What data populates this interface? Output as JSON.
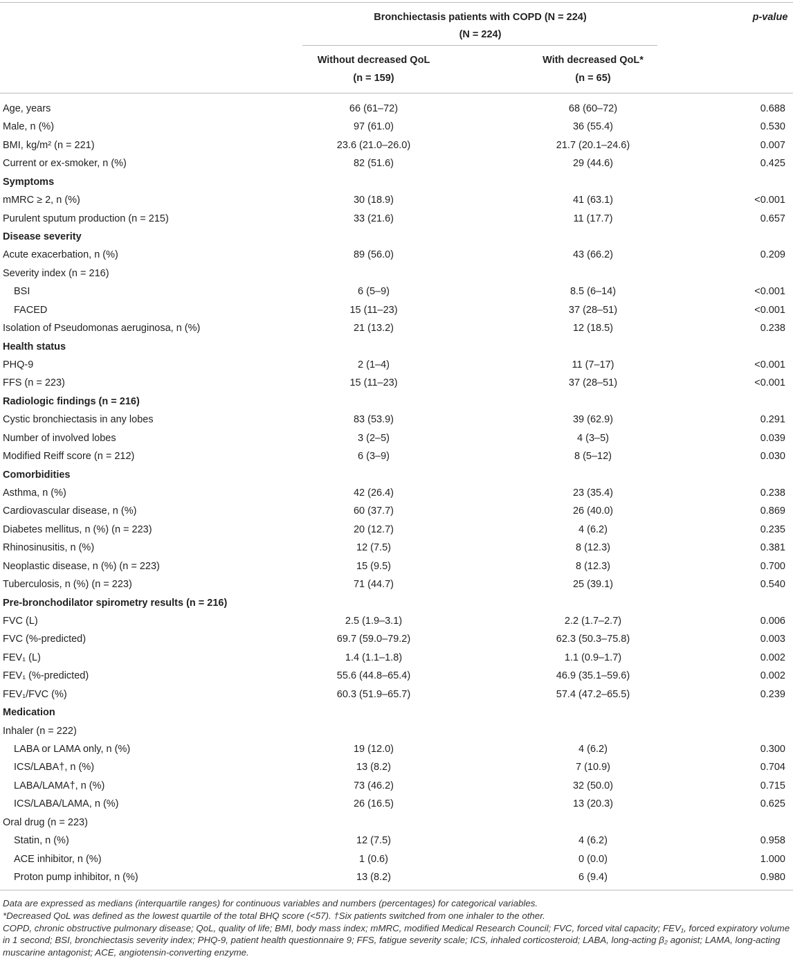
{
  "table": {
    "header": {
      "group": "Bronchiectasis patients with COPD (N = 224)",
      "group_sub": "(N = 224)",
      "pvalue": "p-value",
      "columns": [
        {
          "name": "Without decreased QoL",
          "n": "(n = 159)"
        },
        {
          "name": "With decreased QoL*",
          "n": "(n = 65)"
        }
      ]
    },
    "rows": [
      {
        "label": "Age, years",
        "values": [
          "66 (61–72)",
          "68 (60–72)",
          "0.688"
        ]
      },
      {
        "label": "Male, n (%)",
        "values": [
          "97 (61.0)",
          "36 (55.4)",
          "0.530"
        ]
      },
      {
        "label": "BMI, kg/m² (n = 221)",
        "values": [
          "23.6 (21.0–26.0)",
          "21.7 (20.1–24.6)",
          "0.007"
        ]
      },
      {
        "label": "Current or ex-smoker, n (%)",
        "values": [
          "82 (51.6)",
          "29 (44.6)",
          "0.425"
        ]
      },
      {
        "label": "Symptoms",
        "bold": true
      },
      {
        "label": "mMRC ≥ 2, n (%)",
        "values": [
          "30 (18.9)",
          "41 (63.1)",
          "<0.001"
        ]
      },
      {
        "label": "Purulent sputum production (n = 215)",
        "values": [
          "33 (21.6)",
          "11 (17.7)",
          "0.657"
        ]
      },
      {
        "label": "Disease severity",
        "bold": true
      },
      {
        "label": "Acute exacerbation, n (%)",
        "values": [
          "89 (56.0)",
          "43 (66.2)",
          "0.209"
        ]
      },
      {
        "label": "Severity index (n = 216)"
      },
      {
        "label": "BSI",
        "indent": true,
        "values": [
          "6 (5–9)",
          "8.5 (6–14)",
          "<0.001"
        ]
      },
      {
        "label": "FACED",
        "indent": true,
        "values": [
          "15 (11–23)",
          "37 (28–51)",
          "<0.001"
        ]
      },
      {
        "label": "Isolation of Pseudomonas aeruginosa, n (%)",
        "values": [
          "21 (13.2)",
          "12 (18.5)",
          "0.238"
        ]
      },
      {
        "label": "Health status",
        "bold": true
      },
      {
        "label": "PHQ-9",
        "values": [
          "2 (1–4)",
          "11 (7–17)",
          "<0.001"
        ]
      },
      {
        "label": "FFS (n = 223)",
        "values": [
          "15 (11–23)",
          "37 (28–51)",
          "<0.001"
        ]
      },
      {
        "label": "Radiologic findings (n = 216)",
        "bold": true
      },
      {
        "label": "Cystic bronchiectasis in any lobes",
        "values": [
          "83 (53.9)",
          "39 (62.9)",
          "0.291"
        ]
      },
      {
        "label": "Number of involved lobes",
        "values": [
          "3 (2–5)",
          "4 (3–5)",
          "0.039"
        ]
      },
      {
        "label": "Modified Reiff score (n = 212)",
        "values": [
          "6 (3–9)",
          "8 (5–12)",
          "0.030"
        ]
      },
      {
        "label": "Comorbidities",
        "bold": true
      },
      {
        "label": "Asthma, n (%)",
        "values": [
          "42 (26.4)",
          "23 (35.4)",
          "0.238"
        ]
      },
      {
        "label": "Cardiovascular disease, n (%)",
        "values": [
          "60 (37.7)",
          "26 (40.0)",
          "0.869"
        ]
      },
      {
        "label": "Diabetes mellitus, n (%) (n = 223)",
        "values": [
          "20 (12.7)",
          "4 (6.2)",
          "0.235"
        ]
      },
      {
        "label": "Rhinosinusitis, n (%)",
        "values": [
          "12 (7.5)",
          "8 (12.3)",
          "0.381"
        ]
      },
      {
        "label": "Neoplastic disease, n (%) (n = 223)",
        "values": [
          "15 (9.5)",
          "8 (12.3)",
          "0.700"
        ]
      },
      {
        "label": "Tuberculosis, n (%) (n = 223)",
        "values": [
          "71 (44.7)",
          "25 (39.1)",
          "0.540"
        ]
      },
      {
        "label": "Pre-bronchodilator spirometry results (n = 216)",
        "bold": true
      },
      {
        "label": "FVC (L)",
        "values": [
          "2.5 (1.9–3.1)",
          "2.2 (1.7–2.7)",
          "0.006"
        ]
      },
      {
        "label": "FVC (%-predicted)",
        "values": [
          "69.7 (59.0–79.2)",
          "62.3 (50.3–75.8)",
          "0.003"
        ]
      },
      {
        "label": "FEV₁ (L)",
        "values": [
          "1.4 (1.1–1.8)",
          "1.1 (0.9–1.7)",
          "0.002"
        ]
      },
      {
        "label": "FEV₁ (%-predicted)",
        "values": [
          "55.6 (44.8–65.4)",
          "46.9 (35.1–59.6)",
          "0.002"
        ]
      },
      {
        "label": "FEV₁/FVC (%)",
        "values": [
          "60.3 (51.9–65.7)",
          "57.4 (47.2–65.5)",
          "0.239"
        ]
      },
      {
        "label": "Medication",
        "bold": true
      },
      {
        "label": "Inhaler (n = 222)"
      },
      {
        "label": "LABA or LAMA only, n (%)",
        "indent": true,
        "values": [
          "19 (12.0)",
          "4 (6.2)",
          "0.300"
        ]
      },
      {
        "label": "ICS/LABA†, n (%)",
        "indent": true,
        "values": [
          "13 (8.2)",
          "7 (10.9)",
          "0.704"
        ]
      },
      {
        "label": "LABA/LAMA†, n (%)",
        "indent": true,
        "values": [
          "73 (46.2)",
          "32 (50.0)",
          "0.715"
        ]
      },
      {
        "label": "ICS/LABA/LAMA, n (%)",
        "indent": true,
        "values": [
          "26 (16.5)",
          "13 (20.3)",
          "0.625"
        ]
      },
      {
        "label": "Oral drug (n = 223)"
      },
      {
        "label": "Statin, n (%)",
        "indent": true,
        "values": [
          "12 (7.5)",
          "4 (6.2)",
          "0.958"
        ]
      },
      {
        "label": "ACE inhibitor, n (%)",
        "indent": true,
        "values": [
          "1 (0.6)",
          "0 (0.0)",
          "1.000"
        ]
      },
      {
        "label": "Proton pump inhibitor, n (%)",
        "indent": true,
        "values": [
          "13 (8.2)",
          "6 (9.4)",
          "0.980"
        ]
      }
    ],
    "footnotes": [
      "Data are expressed as medians (interquartile ranges) for continuous variables and numbers (percentages) for categorical variables.",
      "*Decreased QoL was defined as the lowest quartile of the total BHQ score (<57). †Six patients switched from one inhaler to the other.",
      "COPD, chronic obstructive pulmonary disease; QoL, quality of life; BMI, body mass index; mMRC, modified Medical Research Council; FVC, forced vital capacity; FEV₁, forced expiratory volume in 1 second; BSI, bronchiectasis severity index; PHQ-9, patient health questionnaire 9; FFS, fatigue severity scale; ICS, inhaled corticosteroid; LABA, long-acting β₂ agonist; LAMA, long-acting muscarine antagonist; ACE, angiotensin-converting enzyme."
    ]
  }
}
